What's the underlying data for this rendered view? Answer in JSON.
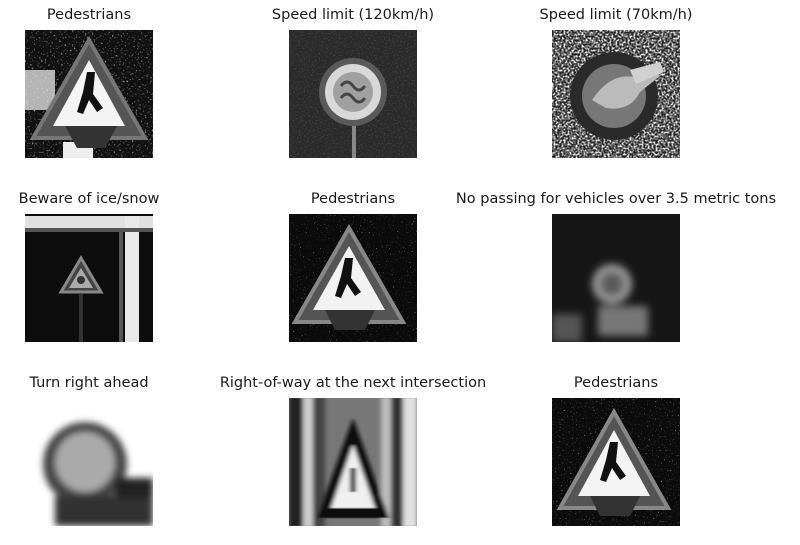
{
  "grid": {
    "images": [
      {
        "label": "Pedestrians",
        "picture": "pedestrians-warning-sign"
      },
      {
        "label": "Speed limit (120km/h)",
        "picture": "round-speed-sign-dark"
      },
      {
        "label": "Speed limit (70km/h)",
        "picture": "round-speed-sign-noisy"
      },
      {
        "label": "Beware of ice/snow",
        "picture": "triangle-sign-dark-with-frame"
      },
      {
        "label": "Pedestrians",
        "picture": "pedestrians-warning-sign"
      },
      {
        "label": "No passing for vehicles over 3.5 metric tons",
        "picture": "blurry-round-sign"
      },
      {
        "label": "Turn right ahead",
        "picture": "blurry-round-sign-close"
      },
      {
        "label": "Right-of-way at the next intersection",
        "picture": "stretched-triangle-sign"
      },
      {
        "label": "Pedestrians",
        "picture": "pedestrians-warning-sign"
      }
    ]
  }
}
